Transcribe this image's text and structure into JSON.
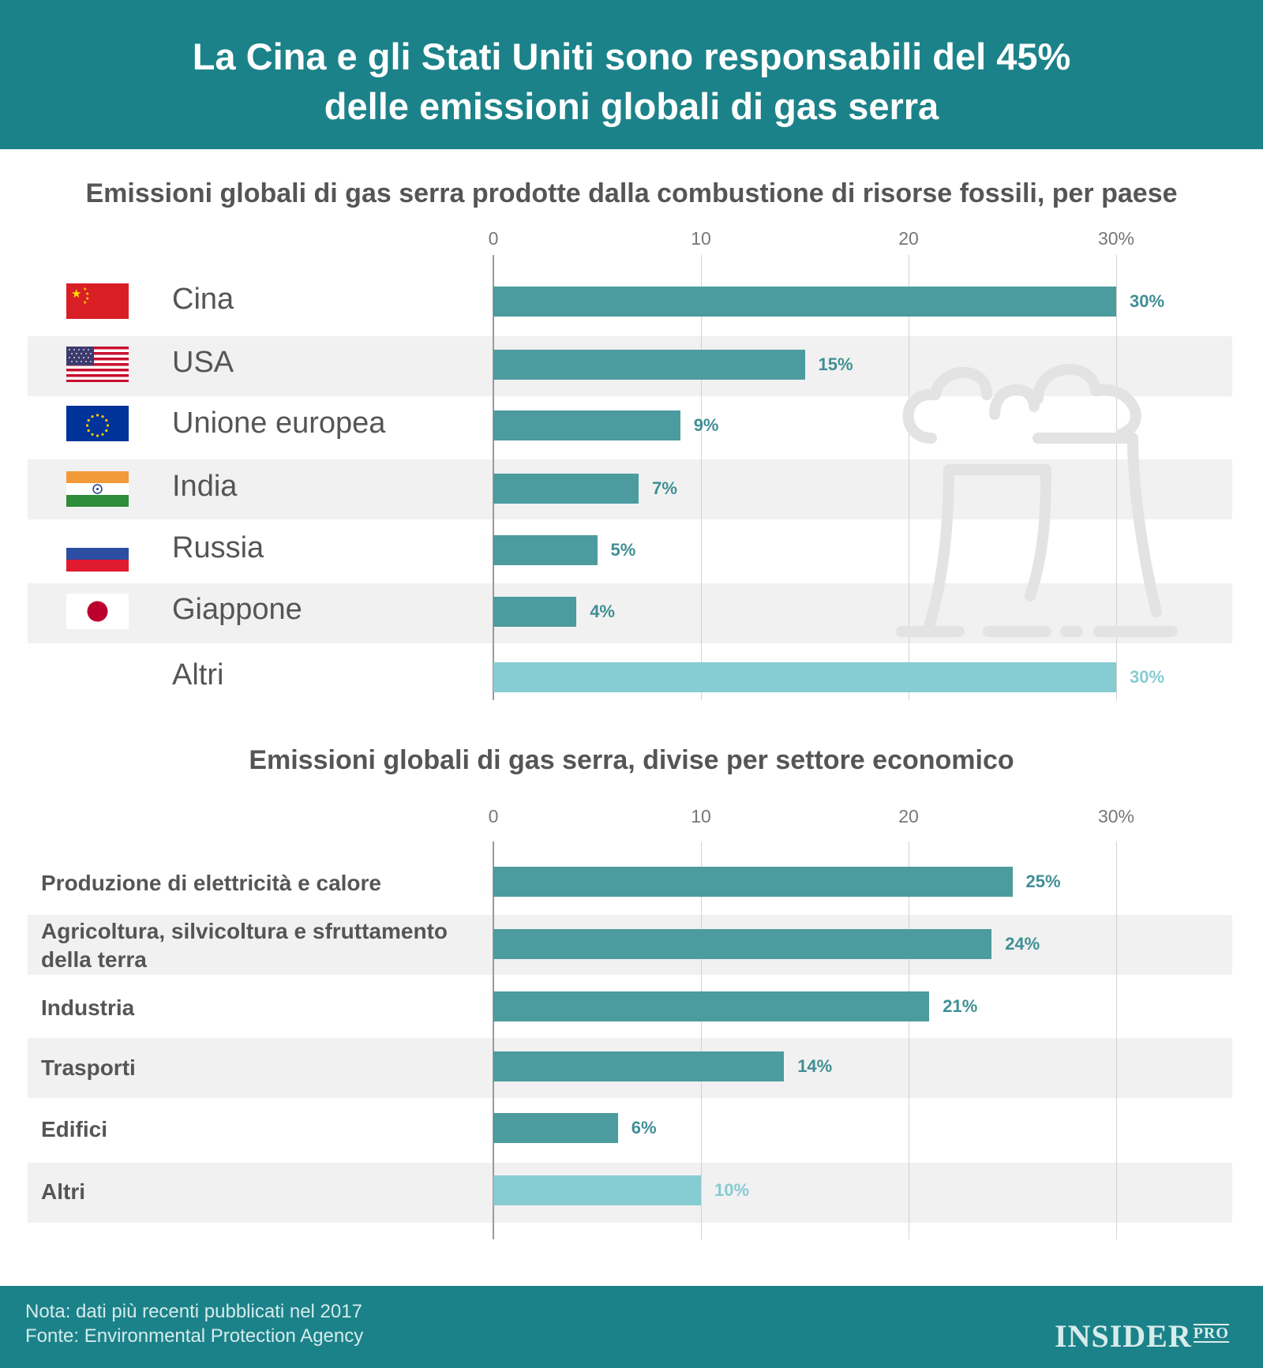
{
  "header": {
    "title_line1": "La Cina e gli Stati Uniti sono responsabili del 45%",
    "title_line2": "delle emissioni globali di gas serra"
  },
  "chart_data": [
    {
      "type": "bar",
      "orientation": "horizontal",
      "title": "Emissioni globali di gas serra prodotte dalla combustione di risorse fossili, per paese",
      "categories": [
        "Cina",
        "USA",
        "Unione europea",
        "India",
        "Russia",
        "Giappone",
        "Altri"
      ],
      "values": [
        30,
        15,
        9,
        7,
        5,
        4,
        30
      ],
      "value_labels": [
        "30%",
        "15%",
        "9%",
        "7%",
        "5%",
        "4%",
        "30%"
      ],
      "xlim": [
        0,
        30
      ],
      "x_ticks": [
        "0",
        "10",
        "20",
        "30%"
      ],
      "grid": true,
      "highlight_last": true,
      "colors": {
        "bar": "#4c9b9f",
        "other": "#87cbd3"
      }
    },
    {
      "type": "bar",
      "orientation": "horizontal",
      "title": "Emissioni globali di gas serra, divise per settore economico",
      "categories": [
        "Produzione di elettricità e calore",
        "Agricoltura, silvicoltura e sfruttamento della terra",
        "Industria",
        "Trasporti",
        "Edifici",
        "Altri"
      ],
      "values": [
        25,
        24,
        21,
        14,
        6,
        10
      ],
      "value_labels": [
        "25%",
        "24%",
        "21%",
        "14%",
        "6%",
        "10%"
      ],
      "xlim": [
        0,
        30
      ],
      "x_ticks": [
        "0",
        "10",
        "20",
        "30%"
      ],
      "grid": true,
      "highlight_last": true,
      "colors": {
        "bar": "#4c9b9f",
        "other": "#87cbd3"
      }
    }
  ],
  "flags": [
    "china-flag-icon",
    "usa-flag-icon",
    "eu-flag-icon",
    "india-flag-icon",
    "russia-flag-icon",
    "japan-flag-icon"
  ],
  "footer": {
    "note": "Nota: dati più recenti pubblicati nel 2017",
    "source": "Fonte: Environmental Protection Agency",
    "logo_main": "INSIDER",
    "logo_sub": "PRO"
  }
}
